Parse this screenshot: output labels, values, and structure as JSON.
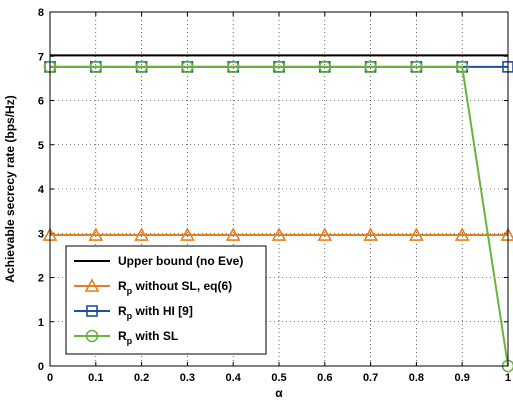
{
  "chart_data": {
    "type": "line",
    "xlabel": "α",
    "ylabel": "Achievable secrecy rate (bps/Hz)",
    "xlim": [
      0,
      1
    ],
    "ylim": [
      0,
      8
    ],
    "xticks": [
      "0",
      "0.1",
      "0.2",
      "0.3",
      "0.4",
      "0.5",
      "0.6",
      "0.7",
      "0.8",
      "0.9",
      "1"
    ],
    "yticks": [
      "0",
      "1",
      "2",
      "3",
      "4",
      "5",
      "6",
      "7",
      "8"
    ],
    "grid": true,
    "legend_position": "bottom-left",
    "x": [
      0,
      0.1,
      0.2,
      0.3,
      0.4,
      0.5,
      0.6,
      0.7,
      0.8,
      0.9,
      1.0
    ],
    "series": [
      {
        "name": "Upper bound (no Eve)",
        "color": "#000000",
        "marker": "none",
        "values": [
          7.02,
          7.02,
          7.02,
          7.02,
          7.02,
          7.02,
          7.02,
          7.02,
          7.02,
          7.02,
          7.02
        ]
      },
      {
        "name_main": "R",
        "name_sub": "p",
        "name_rest": " without SL, eq(6)",
        "color": "#e87e1e",
        "marker": "triangle",
        "values": [
          2.96,
          2.96,
          2.96,
          2.96,
          2.96,
          2.96,
          2.96,
          2.96,
          2.96,
          2.96,
          2.96
        ]
      },
      {
        "name_main": "R",
        "name_sub": "p",
        "name_rest": " with HI [9]",
        "color": "#1f4f9f",
        "marker": "square",
        "values": [
          6.76,
          6.76,
          6.76,
          6.76,
          6.76,
          6.76,
          6.76,
          6.76,
          6.76,
          6.76,
          6.76
        ]
      },
      {
        "name_main": "R",
        "name_sub": "p",
        "name_rest": " with SL",
        "color": "#6ab33e",
        "marker": "circle",
        "values": [
          6.76,
          6.76,
          6.76,
          6.76,
          6.76,
          6.76,
          6.76,
          6.76,
          6.76,
          6.76,
          0.0
        ]
      }
    ]
  }
}
